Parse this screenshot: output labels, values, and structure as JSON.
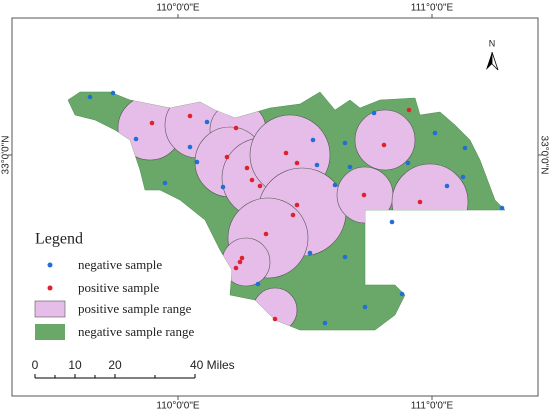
{
  "map": {
    "graticule": {
      "top": [
        "110°0'0\"E",
        "111°0'0\"E"
      ],
      "bottom": [
        "110°0'0\"E",
        "111°0'0\"E"
      ],
      "left": [
        "33°0'0\"N"
      ],
      "right": [
        "33°0'0\"N"
      ]
    },
    "north": "N",
    "legend": {
      "title": "Legend",
      "items": [
        "negative sample",
        "positive sample",
        "positive sample range",
        "negative sample range"
      ]
    },
    "scale_bar": {
      "labels": [
        "0",
        "10",
        "20",
        "40 Miles"
      ]
    }
  }
}
